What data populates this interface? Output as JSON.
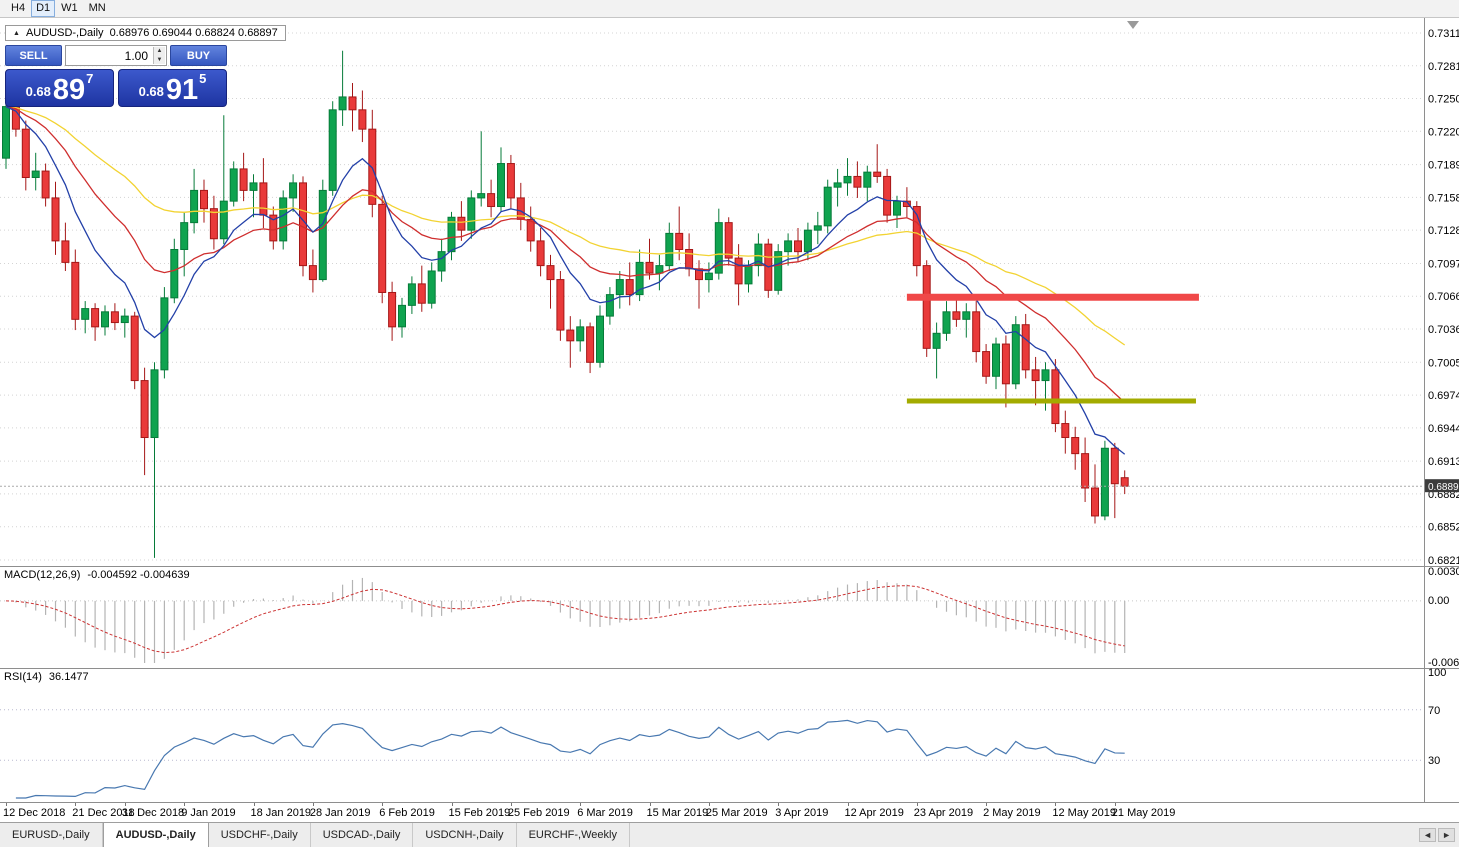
{
  "toolbar": {
    "timeframes": [
      {
        "label": "H4",
        "active": false
      },
      {
        "label": "D1",
        "active": true
      },
      {
        "label": "W1",
        "active": false
      },
      {
        "label": "MN",
        "active": false
      }
    ]
  },
  "chart_title": {
    "symbol": "AUDUSD-,Daily",
    "ohlc": "0.68976 0.69044 0.68824 0.68897"
  },
  "one_click": {
    "sell_label": "SELL",
    "buy_label": "BUY",
    "volume": "1.00",
    "sell": {
      "prefix": "0.68",
      "big": "89",
      "sup": "7"
    },
    "buy": {
      "prefix": "0.68",
      "big": "91",
      "sup": "5"
    }
  },
  "indicators": {
    "macd_title": "MACD(12,26,9)",
    "macd_values": "-0.004592 -0.004639",
    "rsi_title": "RSI(14)",
    "rsi_value": "36.1477"
  },
  "tabs": {
    "labels": [
      "EURUSD-,Daily",
      "AUDUSD-,Daily",
      "USDCHF-,Daily",
      "USDCAD-,Daily",
      "USDCNH-,Daily",
      "EURCHF-,Weekly"
    ],
    "active_index": 1
  },
  "chart_data": {
    "type": "candlestick",
    "symbol": "AUDUSD",
    "timeframe": "Daily",
    "current_price": "0.68897",
    "price_axis": {
      "min": 0.6821,
      "max": 0.73115,
      "ticks": [
        "0.73115",
        "0.72810",
        "0.72505",
        "0.72200",
        "0.71890",
        "0.71585",
        "0.71280",
        "0.70970",
        "0.70665",
        "0.70360",
        "0.70050",
        "0.69745",
        "0.69440",
        "0.69130",
        "0.68825",
        "0.68520",
        "0.68210"
      ]
    },
    "candles": [
      [
        0.7195,
        0.725,
        0.7185,
        0.7243
      ],
      [
        0.7243,
        0.7258,
        0.7215,
        0.7222
      ],
      [
        0.7222,
        0.723,
        0.7165,
        0.7177
      ],
      [
        0.7177,
        0.72,
        0.7165,
        0.7183
      ],
      [
        0.7183,
        0.719,
        0.715,
        0.7158
      ],
      [
        0.7158,
        0.7173,
        0.7105,
        0.7118
      ],
      [
        0.7118,
        0.7135,
        0.709,
        0.7098
      ],
      [
        0.7098,
        0.711,
        0.7035,
        0.7045
      ],
      [
        0.7045,
        0.7062,
        0.7032,
        0.7055
      ],
      [
        0.7055,
        0.706,
        0.7025,
        0.7038
      ],
      [
        0.7038,
        0.7058,
        0.703,
        0.7052
      ],
      [
        0.7052,
        0.706,
        0.7035,
        0.7042
      ],
      [
        0.7042,
        0.7055,
        0.7028,
        0.7048
      ],
      [
        0.7048,
        0.7052,
        0.698,
        0.6988
      ],
      [
        0.6988,
        0.7,
        0.69,
        0.6935
      ],
      [
        0.6935,
        0.7005,
        0.6823,
        0.6998
      ],
      [
        0.6998,
        0.7075,
        0.699,
        0.7065
      ],
      [
        0.7065,
        0.712,
        0.706,
        0.711
      ],
      [
        0.711,
        0.7145,
        0.7085,
        0.7135
      ],
      [
        0.7135,
        0.7185,
        0.7125,
        0.7165
      ],
      [
        0.7165,
        0.7175,
        0.7135,
        0.7148
      ],
      [
        0.7148,
        0.716,
        0.711,
        0.712
      ],
      [
        0.712,
        0.7235,
        0.7115,
        0.7155
      ],
      [
        0.7155,
        0.7192,
        0.715,
        0.7185
      ],
      [
        0.7185,
        0.72,
        0.7155,
        0.7165
      ],
      [
        0.7165,
        0.718,
        0.714,
        0.7172
      ],
      [
        0.7172,
        0.7195,
        0.713,
        0.7142
      ],
      [
        0.7142,
        0.715,
        0.711,
        0.7118
      ],
      [
        0.7118,
        0.7165,
        0.711,
        0.7158
      ],
      [
        0.7158,
        0.718,
        0.7145,
        0.7172
      ],
      [
        0.7172,
        0.7178,
        0.7085,
        0.7095
      ],
      [
        0.7095,
        0.711,
        0.707,
        0.7082
      ],
      [
        0.7082,
        0.7175,
        0.708,
        0.7165
      ],
      [
        0.7165,
        0.7248,
        0.716,
        0.724
      ],
      [
        0.724,
        0.7295,
        0.7225,
        0.7252
      ],
      [
        0.7252,
        0.7265,
        0.722,
        0.724
      ],
      [
        0.724,
        0.7258,
        0.721,
        0.7222
      ],
      [
        0.7222,
        0.724,
        0.714,
        0.7152
      ],
      [
        0.7152,
        0.716,
        0.706,
        0.707
      ],
      [
        0.707,
        0.708,
        0.7025,
        0.7038
      ],
      [
        0.7038,
        0.7065,
        0.7028,
        0.7058
      ],
      [
        0.7058,
        0.7085,
        0.705,
        0.7078
      ],
      [
        0.7078,
        0.7095,
        0.7052,
        0.706
      ],
      [
        0.706,
        0.7098,
        0.7055,
        0.709
      ],
      [
        0.709,
        0.712,
        0.708,
        0.7108
      ],
      [
        0.7108,
        0.7145,
        0.71,
        0.714
      ],
      [
        0.714,
        0.7155,
        0.7118,
        0.7128
      ],
      [
        0.7128,
        0.7165,
        0.712,
        0.7158
      ],
      [
        0.7158,
        0.722,
        0.715,
        0.7162
      ],
      [
        0.7162,
        0.7175,
        0.714,
        0.715
      ],
      [
        0.715,
        0.7205,
        0.7145,
        0.719
      ],
      [
        0.719,
        0.7198,
        0.7148,
        0.7158
      ],
      [
        0.7158,
        0.7172,
        0.7128,
        0.7138
      ],
      [
        0.7138,
        0.715,
        0.7108,
        0.7118
      ],
      [
        0.7118,
        0.713,
        0.7085,
        0.7095
      ],
      [
        0.7095,
        0.7105,
        0.7055,
        0.7082
      ],
      [
        0.7082,
        0.709,
        0.7025,
        0.7035
      ],
      [
        0.7035,
        0.7048,
        0.7,
        0.7025
      ],
      [
        0.7025,
        0.7045,
        0.7015,
        0.7038
      ],
      [
        0.7038,
        0.7042,
        0.6995,
        0.7005
      ],
      [
        0.7005,
        0.7058,
        0.7,
        0.7048
      ],
      [
        0.7048,
        0.7075,
        0.704,
        0.7068
      ],
      [
        0.7068,
        0.709,
        0.7055,
        0.7082
      ],
      [
        0.7082,
        0.7098,
        0.7058,
        0.7068
      ],
      [
        0.7068,
        0.711,
        0.7062,
        0.7098
      ],
      [
        0.7098,
        0.712,
        0.7082,
        0.7088
      ],
      [
        0.7088,
        0.7105,
        0.7072,
        0.7095
      ],
      [
        0.7095,
        0.7135,
        0.709,
        0.7125
      ],
      [
        0.7125,
        0.715,
        0.71,
        0.711
      ],
      [
        0.711,
        0.7125,
        0.7085,
        0.7092
      ],
      [
        0.7092,
        0.71,
        0.7055,
        0.7082
      ],
      [
        0.7082,
        0.7098,
        0.707,
        0.7088
      ],
      [
        0.7088,
        0.7148,
        0.7082,
        0.7135
      ],
      [
        0.7135,
        0.714,
        0.7095,
        0.7102
      ],
      [
        0.7102,
        0.7115,
        0.7058,
        0.7078
      ],
      [
        0.7078,
        0.71,
        0.707,
        0.7095
      ],
      [
        0.7095,
        0.7125,
        0.7085,
        0.7115
      ],
      [
        0.7115,
        0.712,
        0.7065,
        0.7072
      ],
      [
        0.7072,
        0.7115,
        0.7068,
        0.7108
      ],
      [
        0.7108,
        0.7125,
        0.7095,
        0.7118
      ],
      [
        0.7118,
        0.713,
        0.7098,
        0.7108
      ],
      [
        0.7108,
        0.7135,
        0.71,
        0.7128
      ],
      [
        0.7128,
        0.7145,
        0.7115,
        0.7132
      ],
      [
        0.7132,
        0.7175,
        0.7125,
        0.7168
      ],
      [
        0.7168,
        0.7185,
        0.715,
        0.7172
      ],
      [
        0.7172,
        0.7195,
        0.716,
        0.7178
      ],
      [
        0.7178,
        0.7192,
        0.7158,
        0.7168
      ],
      [
        0.7168,
        0.7188,
        0.7155,
        0.7182
      ],
      [
        0.7182,
        0.7208,
        0.7172,
        0.7178
      ],
      [
        0.7178,
        0.7185,
        0.7135,
        0.7142
      ],
      [
        0.7142,
        0.716,
        0.713,
        0.7155
      ],
      [
        0.7155,
        0.7168,
        0.714,
        0.715
      ],
      [
        0.715,
        0.7155,
        0.7085,
        0.7095
      ],
      [
        0.7095,
        0.71,
        0.701,
        0.7018
      ],
      [
        0.7018,
        0.7042,
        0.699,
        0.7032
      ],
      [
        0.7032,
        0.7062,
        0.7025,
        0.7052
      ],
      [
        0.7052,
        0.7068,
        0.7038,
        0.7045
      ],
      [
        0.7045,
        0.706,
        0.7028,
        0.7052
      ],
      [
        0.7052,
        0.7062,
        0.7005,
        0.7015
      ],
      [
        0.7015,
        0.7022,
        0.6985,
        0.6992
      ],
      [
        0.6992,
        0.7028,
        0.698,
        0.7022
      ],
      [
        0.7022,
        0.703,
        0.6963,
        0.6985
      ],
      [
        0.6985,
        0.7048,
        0.698,
        0.704
      ],
      [
        0.704,
        0.705,
        0.699,
        0.6998
      ],
      [
        0.6998,
        0.701,
        0.6965,
        0.6988
      ],
      [
        0.6988,
        0.7005,
        0.696,
        0.6998
      ],
      [
        0.6998,
        0.7008,
        0.694,
        0.6948
      ],
      [
        0.6948,
        0.696,
        0.692,
        0.6935
      ],
      [
        0.6935,
        0.6945,
        0.6905,
        0.692
      ],
      [
        0.692,
        0.6935,
        0.6875,
        0.6888
      ],
      [
        0.6888,
        0.691,
        0.6855,
        0.6862
      ],
      [
        0.6862,
        0.6932,
        0.6858,
        0.6925
      ],
      [
        0.6925,
        0.693,
        0.686,
        0.6892
      ],
      [
        0.68976,
        0.69044,
        0.68824,
        0.68897
      ]
    ],
    "date_labels": [
      [
        "12 Dec 2018",
        0
      ],
      [
        "21 Dec 2018",
        7
      ],
      [
        "31 Dec 2018",
        12
      ],
      [
        "9 Jan 2019",
        18
      ],
      [
        "18 Jan 2019",
        25
      ],
      [
        "28 Jan 2019",
        31
      ],
      [
        "6 Feb 2019",
        38
      ],
      [
        "15 Feb 2019",
        45
      ],
      [
        "25 Feb 2019",
        51
      ],
      [
        "6 Mar 2019",
        58
      ],
      [
        "15 Mar 2019",
        65
      ],
      [
        "25 Mar 2019",
        71
      ],
      [
        "3 Apr 2019",
        78
      ],
      [
        "12 Apr 2019",
        85
      ],
      [
        "23 Apr 2019",
        92
      ],
      [
        "2 May 2019",
        99
      ],
      [
        "12 May 2019",
        106
      ],
      [
        "21 May 2019",
        112
      ]
    ],
    "hlines": [
      {
        "name": "resistance",
        "price": 0.70655,
        "color": "#f04848",
        "width": 7,
        "from_index": 91,
        "to_index": 120.5
      },
      {
        "name": "support",
        "price": 0.6969,
        "color": "#a3ab00",
        "width": 5,
        "from_index": 91,
        "to_index": 120.2
      }
    ],
    "moving_averages": [
      {
        "name": "slow-yellow",
        "period": 42,
        "color": "#f2d332"
      },
      {
        "name": "mid-red",
        "period": 20,
        "color": "#cf2e2e"
      },
      {
        "name": "fast-blue",
        "period": 9,
        "color": "#2340a8"
      }
    ],
    "macd": {
      "params": [
        12,
        26,
        9
      ],
      "axis_ticks": [
        "0.003035",
        "0.00",
        "-0.00631"
      ],
      "max": 0.003035,
      "min": -0.00631,
      "histogram_color": "#b4b4b4",
      "signal_color": "#cc3333"
    },
    "rsi": {
      "period": 14,
      "axis_ticks": [
        [
          "100",
          100
        ],
        [
          "70",
          70
        ],
        [
          "30",
          30
        ]
      ],
      "levels": [
        70,
        30
      ],
      "color": "#4878b0"
    },
    "colors": {
      "bull_fill": "#0fa34f",
      "bull_border": "#067b39",
      "bear_fill": "#e93a3a",
      "bear_border": "#a51717",
      "grid": "#d4d4d4",
      "price_line": "#aaaaaa",
      "price_tag_bg": "#3c3c3c",
      "axis_text": "#000000"
    }
  }
}
